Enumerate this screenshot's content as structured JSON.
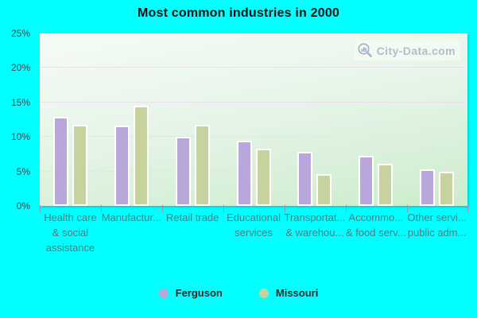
{
  "title": "Most common industries in 2000",
  "watermark": {
    "text": "City-Data.com"
  },
  "colors": {
    "background": "#00ffff",
    "plot_gradient_top": "#f5fbf6",
    "plot_gradient_bottom": "#cdeccc",
    "gridline": "#e9e1ec",
    "bar_border": "#ffffff",
    "y_tick_label": "#3c4b52",
    "x_tick_label": "#4e7d85",
    "tick_mark": "#7ba2a8",
    "title_text": "#141414",
    "legend_text": "#2d2d2d",
    "watermark_text": "#b3bfc7"
  },
  "chart_data": {
    "type": "bar",
    "title": "Most common industries in 2000",
    "categories": [
      "Health care\n& social\nassistance",
      "Manufactur...",
      "Retail trade",
      "Educational\nservices",
      "Transportat...\n& warehou...",
      "Accommo...\n& food serv...",
      "Other servi...\npublic adm..."
    ],
    "series": [
      {
        "name": "Ferguson",
        "color": "#b9a7dc",
        "values": [
          12.9,
          11.6,
          10.0,
          9.4,
          7.8,
          7.3,
          5.3
        ]
      },
      {
        "name": "Missouri",
        "color": "#c6d39f",
        "values": [
          11.7,
          14.5,
          11.7,
          8.3,
          4.6,
          6.1,
          4.9
        ]
      }
    ],
    "ylabel": "",
    "xlabel": "",
    "ylim": [
      0,
      25
    ],
    "yticks": [
      0,
      5,
      10,
      15,
      20,
      25
    ],
    "ytick_suffix": "%",
    "grid": "horizontal",
    "legend_position": "bottom"
  }
}
